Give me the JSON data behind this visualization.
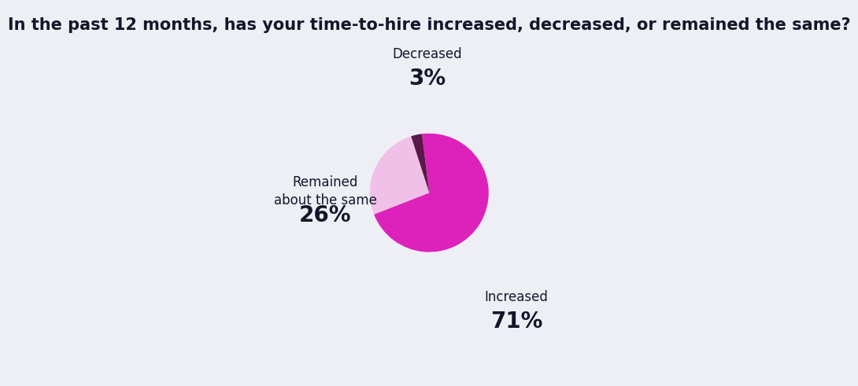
{
  "title": "In the past 12 months, has your time-to-hire increased, decreased, or remained the same?",
  "title_fontsize": 15,
  "title_color": "#12172a",
  "background_color": "#eeeef5",
  "slices": [
    {
      "label": "Increased",
      "value": 71,
      "color": "#dd22bb"
    },
    {
      "label": "Remained\nabout the same",
      "value": 26,
      "color": "#f0c0e8"
    },
    {
      "label": "Decreased",
      "value": 3,
      "color": "#5c1848"
    }
  ],
  "label_fontsize": 12,
  "pct_fontsize": 20,
  "label_color": "#12172a",
  "startangle": 97,
  "counterclock": false,
  "annotation_positions": {
    "Increased": [
      0.735,
      0.16
    ],
    "Remained\nabout the same": [
      0.22,
      0.445
    ],
    "Decreased": [
      0.495,
      0.815
    ]
  }
}
